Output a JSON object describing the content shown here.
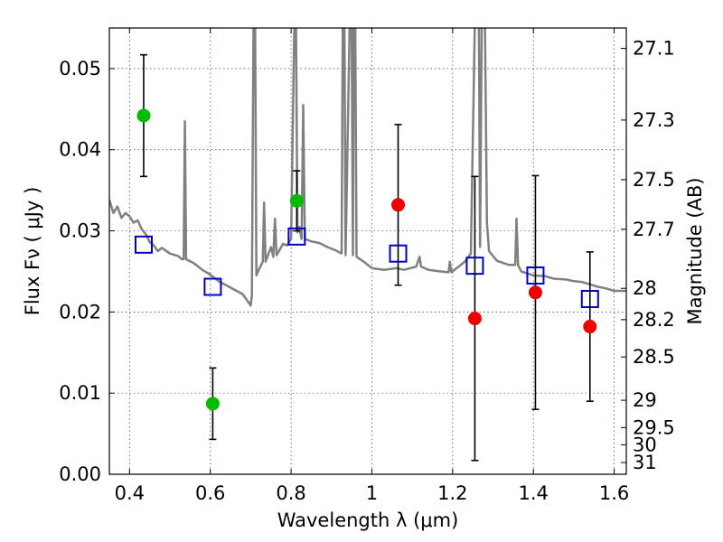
{
  "chart_data": {
    "type": "scatter",
    "title": "",
    "xlabel": "Wavelength  λ (μm)",
    "ylabel": "Flux  Fν  ( μJy )",
    "ylabel_right": "Magnitude (AB)",
    "xlim": [
      0.35,
      1.63
    ],
    "ylim": [
      0.0,
      0.055
    ],
    "x_ticks": [
      0.4,
      0.6,
      0.8,
      1.0,
      1.2,
      1.4,
      1.6
    ],
    "x_tick_labels": [
      "0.4",
      "0.6",
      "0.8",
      "1",
      "1.2",
      "1.4",
      "1.6"
    ],
    "y_ticks": [
      0.0,
      0.01,
      0.02,
      0.03,
      0.04,
      0.05
    ],
    "y_tick_labels": [
      "0.00",
      "0.01",
      "0.02",
      "0.03",
      "0.04",
      "0.05"
    ],
    "right_ticks": [
      {
        "mag": 27.1,
        "label": "27.1"
      },
      {
        "mag": 27.3,
        "label": "27.3"
      },
      {
        "mag": 27.5,
        "label": "27.5"
      },
      {
        "mag": 27.7,
        "label": "27.7"
      },
      {
        "mag": 28.0,
        "label": "28"
      },
      {
        "mag": 28.2,
        "label": "28.2"
      },
      {
        "mag": 28.5,
        "label": "28.5"
      },
      {
        "mag": 29.0,
        "label": "29"
      },
      {
        "mag": 29.5,
        "label": "29.5"
      },
      {
        "mag": 30.0,
        "label": "30"
      },
      {
        "mag": 31.0,
        "label": "31"
      }
    ],
    "grid": true,
    "colors": {
      "green": "#00bb00",
      "red": "#ee0000",
      "model_box": "#0000cc",
      "sed_line": "#808080",
      "errorbar": "#000000"
    },
    "series": [
      {
        "points": [
          {
            "x": 0.435,
            "y": 0.0442,
            "err": 0.0075
          },
          {
            "x": 0.606,
            "y": 0.0087,
            "err": 0.0044
          },
          {
            "x": 0.814,
            "y": 0.0337,
            "err": 0.0037
          }
        ]
      },
      {
        "points": [
          {
            "x": 1.065,
            "y": 0.0332,
            "err": 0.0099
          },
          {
            "x": 1.255,
            "y": 0.0192,
            "err": 0.0175
          },
          {
            "x": 1.405,
            "y": 0.0224,
            "err": 0.0144
          },
          {
            "x": 1.54,
            "y": 0.0182,
            "err": 0.0092
          }
        ]
      },
      {
        "points": [
          {
            "x": 0.435,
            "y": 0.0283
          },
          {
            "x": 0.606,
            "y": 0.0231
          },
          {
            "x": 0.814,
            "y": 0.0293
          },
          {
            "x": 1.065,
            "y": 0.0272
          },
          {
            "x": 1.255,
            "y": 0.0257
          },
          {
            "x": 1.405,
            "y": 0.0245
          },
          {
            "x": 1.54,
            "y": 0.0216
          }
        ]
      },
      {
        "points": [
          [
            0.35,
            0.0338
          ],
          [
            0.36,
            0.0322
          ],
          [
            0.37,
            0.033
          ],
          [
            0.38,
            0.0316
          ],
          [
            0.39,
            0.0322
          ],
          [
            0.4,
            0.0318
          ],
          [
            0.41,
            0.031
          ],
          [
            0.42,
            0.0313
          ],
          [
            0.43,
            0.0302
          ],
          [
            0.44,
            0.0296
          ],
          [
            0.45,
            0.0286
          ],
          [
            0.46,
            0.0282
          ],
          [
            0.47,
            0.0275
          ],
          [
            0.48,
            0.0279
          ],
          [
            0.5,
            0.0272
          ],
          [
            0.52,
            0.0269
          ],
          [
            0.53,
            0.0265
          ],
          [
            0.534,
            0.0265
          ],
          [
            0.537,
            0.0435
          ],
          [
            0.54,
            0.0265
          ],
          [
            0.56,
            0.026
          ],
          [
            0.58,
            0.0252
          ],
          [
            0.6,
            0.0246
          ],
          [
            0.62,
            0.0238
          ],
          [
            0.65,
            0.023
          ],
          [
            0.68,
            0.0222
          ],
          [
            0.7,
            0.0208
          ],
          [
            0.703,
            0.022
          ],
          [
            0.707,
            0.0555
          ],
          [
            0.711,
            0.0555
          ],
          [
            0.714,
            0.0245
          ],
          [
            0.72,
            0.0252
          ],
          [
            0.73,
            0.0262
          ],
          [
            0.733,
            0.0335
          ],
          [
            0.737,
            0.0262
          ],
          [
            0.75,
            0.028
          ],
          [
            0.756,
            0.0268
          ],
          [
            0.76,
            0.0315
          ],
          [
            0.764,
            0.027
          ],
          [
            0.78,
            0.0284
          ],
          [
            0.79,
            0.0282
          ],
          [
            0.8,
            0.029
          ],
          [
            0.808,
            0.0555
          ],
          [
            0.812,
            0.0555
          ],
          [
            0.816,
            0.0298
          ],
          [
            0.82,
            0.0305
          ],
          [
            0.826,
            0.029
          ],
          [
            0.83,
            0.0455
          ],
          [
            0.834,
            0.029
          ],
          [
            0.85,
            0.0287
          ],
          [
            0.87,
            0.0285
          ],
          [
            0.89,
            0.028
          ],
          [
            0.91,
            0.0276
          ],
          [
            0.925,
            0.0272
          ],
          [
            0.928,
            0.0555
          ],
          [
            0.932,
            0.0555
          ],
          [
            0.935,
            0.027
          ],
          [
            0.945,
            0.0555
          ],
          [
            0.95,
            0.0555
          ],
          [
            0.953,
            0.027
          ],
          [
            0.955,
            0.0555
          ],
          [
            0.959,
            0.0555
          ],
          [
            0.962,
            0.0268
          ],
          [
            0.98,
            0.0262
          ],
          [
            1.0,
            0.0254
          ],
          [
            1.03,
            0.0252
          ],
          [
            1.06,
            0.0254
          ],
          [
            1.08,
            0.0252
          ],
          [
            1.11,
            0.0256
          ],
          [
            1.118,
            0.0268
          ],
          [
            1.122,
            0.0256
          ],
          [
            1.14,
            0.0252
          ],
          [
            1.17,
            0.025
          ],
          [
            1.19,
            0.0249
          ],
          [
            1.193,
            0.0262
          ],
          [
            1.197,
            0.0249
          ],
          [
            1.21,
            0.0254
          ],
          [
            1.23,
            0.0262
          ],
          [
            1.245,
            0.0272
          ],
          [
            1.255,
            0.0555
          ],
          [
            1.265,
            0.0555
          ],
          [
            1.268,
            0.028
          ],
          [
            1.272,
            0.0555
          ],
          [
            1.28,
            0.0555
          ],
          [
            1.285,
            0.031
          ],
          [
            1.29,
            0.0275
          ],
          [
            1.31,
            0.0263
          ],
          [
            1.34,
            0.0258
          ],
          [
            1.355,
            0.0258
          ],
          [
            1.358,
            0.0315
          ],
          [
            1.362,
            0.0258
          ],
          [
            1.37,
            0.025
          ],
          [
            1.4,
            0.0245
          ],
          [
            1.43,
            0.0244
          ],
          [
            1.45,
            0.0241
          ],
          [
            1.48,
            0.024
          ],
          [
            1.5,
            0.0238
          ],
          [
            1.52,
            0.0237
          ],
          [
            1.54,
            0.0234
          ],
          [
            1.56,
            0.0231
          ],
          [
            1.58,
            0.0229
          ],
          [
            1.6,
            0.0226
          ],
          [
            1.63,
            0.0226
          ]
        ]
      }
    ]
  }
}
